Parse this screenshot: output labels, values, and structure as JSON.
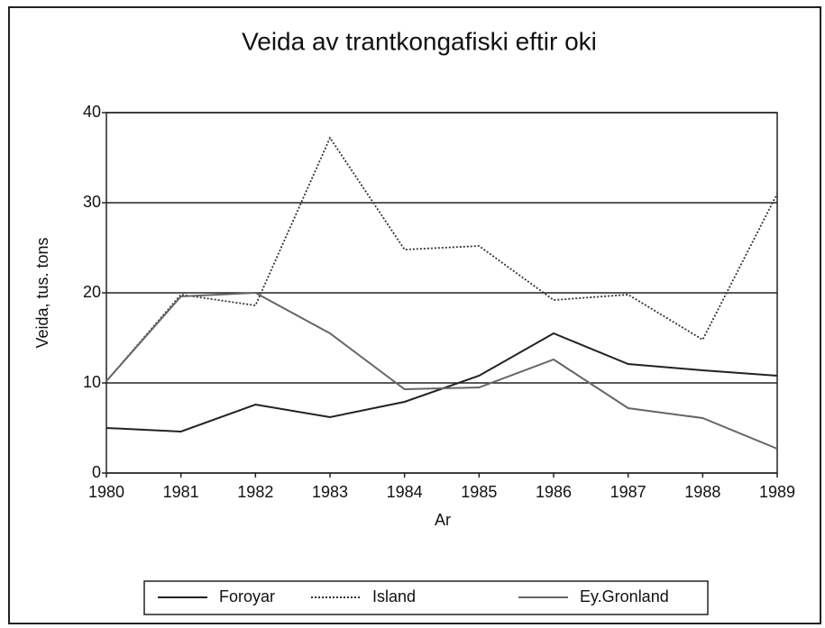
{
  "chart_data": {
    "type": "line",
    "title": "Veida av trantkongafiski eftir oki",
    "x_label": "Ar",
    "y_label": "Veida, tus. tons",
    "x": [
      1980,
      1981,
      1982,
      1983,
      1984,
      1985,
      1986,
      1987,
      1988,
      1989
    ],
    "xlim": [
      1980,
      1989
    ],
    "xticks": [
      1980,
      1981,
      1982,
      1983,
      1984,
      1985,
      1986,
      1987,
      1988,
      1989
    ],
    "ylim": [
      0,
      40
    ],
    "yticks": [
      0,
      10,
      20,
      30,
      40
    ],
    "grid": true,
    "legend": "bottom",
    "series": [
      {
        "name": "Foroyar",
        "color": "#222222",
        "dash": "solid",
        "values": [
          5.0,
          4.6,
          7.6,
          6.2,
          7.9,
          10.8,
          15.5,
          12.1,
          11.4,
          10.8
        ]
      },
      {
        "name": "Island",
        "color": "#333333",
        "dash": "dotted",
        "values": [
          10.2,
          19.8,
          18.6,
          37.2,
          24.8,
          25.2,
          19.2,
          19.8,
          14.8,
          31.0
        ]
      },
      {
        "name": "Ey.Gronland",
        "color": "#666666",
        "dash": "solid",
        "values": [
          10.2,
          19.6,
          20.0,
          15.5,
          9.3,
          9.5,
          12.6,
          7.2,
          6.1,
          2.7
        ]
      }
    ]
  }
}
